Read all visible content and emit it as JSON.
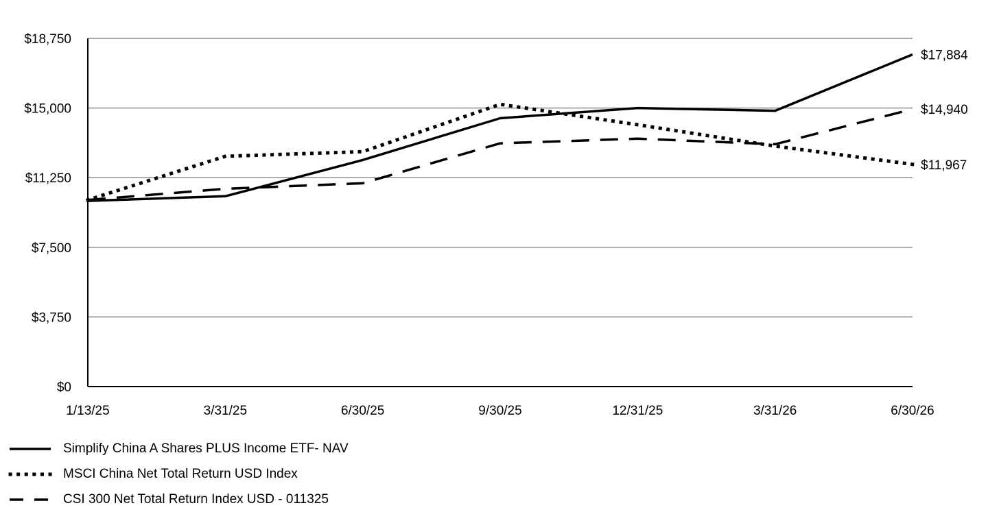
{
  "chart_data": {
    "type": "line",
    "title": "",
    "xlabel": "",
    "ylabel": "",
    "categories": [
      "1/13/25",
      "3/31/25",
      "6/30/25",
      "9/30/25",
      "12/31/25",
      "3/31/26",
      "6/30/26"
    ],
    "y_ticks": [
      "$0",
      "$3,750",
      "$7,500",
      "$11,250",
      "$15,000",
      "$18,750"
    ],
    "ylim": [
      0,
      18750
    ],
    "y_tick_values": [
      0,
      3750,
      7500,
      11250,
      15000,
      18750
    ],
    "grid": true,
    "legend_position": "bottom-left",
    "series": [
      {
        "name": "Simplify China A Shares PLUS Income ETF- NAV",
        "style": "solid",
        "color": "#000000",
        "values": [
          10000,
          10250,
          12200,
          14450,
          15000,
          14850,
          17884
        ],
        "end_label": "$17,884"
      },
      {
        "name": "MSCI China Net Total Return USD Index",
        "style": "dotted",
        "color": "#000000",
        "values": [
          10050,
          12400,
          12650,
          15200,
          14100,
          12950,
          11967
        ],
        "end_label": "$11,967"
      },
      {
        "name": "CSI 300 Net Total Return Index USD - 011325",
        "style": "dashed",
        "color": "#000000",
        "values": [
          10050,
          10650,
          10950,
          13100,
          13350,
          13050,
          14940
        ],
        "end_label": "$14,940"
      }
    ]
  }
}
